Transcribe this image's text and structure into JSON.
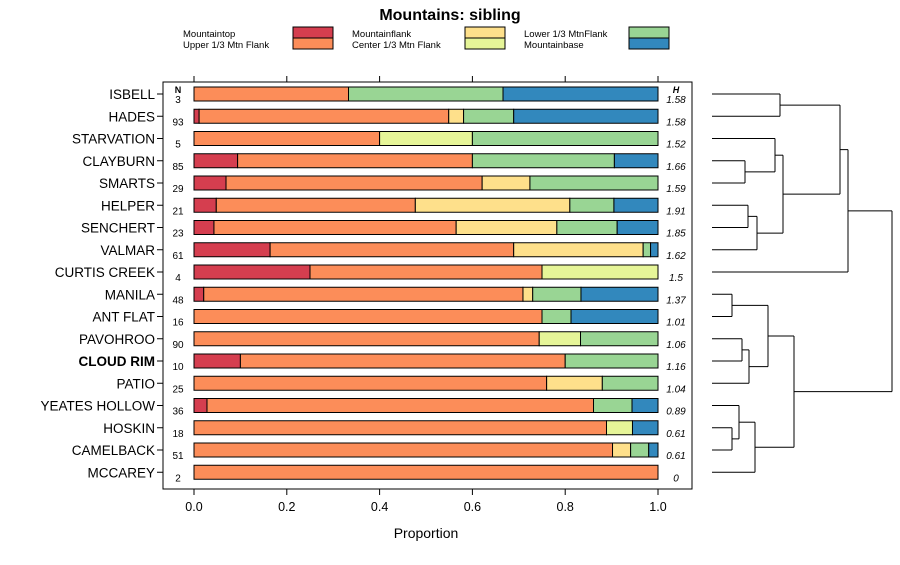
{
  "chart_data": {
    "type": "stacked-bar-horizontal",
    "title": "Mountains: sibling",
    "xlabel": "Proportion",
    "xlim": [
      0,
      1
    ],
    "xticks": [
      "0.0",
      "0.2",
      "0.4",
      "0.6",
      "0.8",
      "1.0"
    ],
    "n_header": "N",
    "h_header": "H",
    "legend": [
      {
        "name": "Mountaintop",
        "color": "#d53e4f"
      },
      {
        "name": "Upper 1/3 Mtn Flank",
        "color": "#fc8d59"
      },
      {
        "name": "Mountainflank",
        "color": "#fee08b"
      },
      {
        "name": "Center 1/3 Mtn Flank",
        "color": "#e6f598"
      },
      {
        "name": "Lower 1/3 MtnFlank",
        "color": "#99d594"
      },
      {
        "name": "Mountainbase",
        "color": "#3288bd"
      }
    ],
    "highlight": "CLOUD RIM",
    "rows": [
      {
        "label": "ISBELL",
        "n": "3",
        "h": "1.58",
        "values": [
          0,
          0.333,
          0,
          0,
          0.333,
          0.334
        ]
      },
      {
        "label": "HADES",
        "n": "93",
        "h": "1.58",
        "values": [
          0.011,
          0.538,
          0.032,
          0,
          0.108,
          0.311
        ]
      },
      {
        "label": "STARVATION",
        "n": "5",
        "h": "1.52",
        "values": [
          0,
          0.4,
          0,
          0.2,
          0.4,
          0
        ]
      },
      {
        "label": "CLAYBURN",
        "n": "85",
        "h": "1.66",
        "values": [
          0.094,
          0.506,
          0,
          0,
          0.306,
          0.094
        ]
      },
      {
        "label": "SMARTS",
        "n": "29",
        "h": "1.59",
        "values": [
          0.069,
          0.552,
          0.103,
          0,
          0.276,
          0
        ]
      },
      {
        "label": "HELPER",
        "n": "21",
        "h": "1.91",
        "values": [
          0.048,
          0.429,
          0.333,
          0,
          0.095,
          0.095
        ]
      },
      {
        "label": "SENCHERT",
        "n": "23",
        "h": "1.85",
        "values": [
          0.043,
          0.522,
          0.217,
          0,
          0.13,
          0.088
        ]
      },
      {
        "label": "VALMAR",
        "n": "61",
        "h": "1.62",
        "values": [
          0.164,
          0.525,
          0.279,
          0,
          0.016,
          0.016
        ]
      },
      {
        "label": "CURTIS CREEK",
        "n": "4",
        "h": "1.5",
        "values": [
          0.25,
          0.5,
          0,
          0.25,
          0,
          0
        ]
      },
      {
        "label": "MANILA",
        "n": "48",
        "h": "1.37",
        "values": [
          0.021,
          0.688,
          0.021,
          0,
          0.104,
          0.166
        ]
      },
      {
        "label": "ANT FLAT",
        "n": "16",
        "h": "1.01",
        "values": [
          0,
          0.75,
          0,
          0,
          0.0625,
          0.1875
        ]
      },
      {
        "label": "PAVOHROO",
        "n": "90",
        "h": "1.06",
        "values": [
          0,
          0.744,
          0,
          0.089,
          0.167,
          0
        ]
      },
      {
        "label": "CLOUD RIM",
        "n": "10",
        "h": "1.16",
        "values": [
          0.1,
          0.7,
          0,
          0,
          0.2,
          0
        ]
      },
      {
        "label": "PATIO",
        "n": "25",
        "h": "1.04",
        "values": [
          0,
          0.76,
          0.12,
          0,
          0.12,
          0
        ]
      },
      {
        "label": "YEATES HOLLOW",
        "n": "36",
        "h": "0.89",
        "values": [
          0.028,
          0.833,
          0,
          0,
          0.083,
          0.056
        ]
      },
      {
        "label": "HOSKIN",
        "n": "18",
        "h": "0.61",
        "values": [
          0,
          0.889,
          0,
          0.056,
          0,
          0.055
        ]
      },
      {
        "label": "CAMELBACK",
        "n": "51",
        "h": "0.61",
        "values": [
          0,
          0.902,
          0.039,
          0,
          0.039,
          0.02
        ]
      },
      {
        "label": "MCCAREY",
        "n": "2",
        "h": "0",
        "values": [
          0,
          1,
          0,
          0,
          0,
          0
        ]
      }
    ],
    "dendrogram": "clustering tree of the rows (right margin)"
  }
}
